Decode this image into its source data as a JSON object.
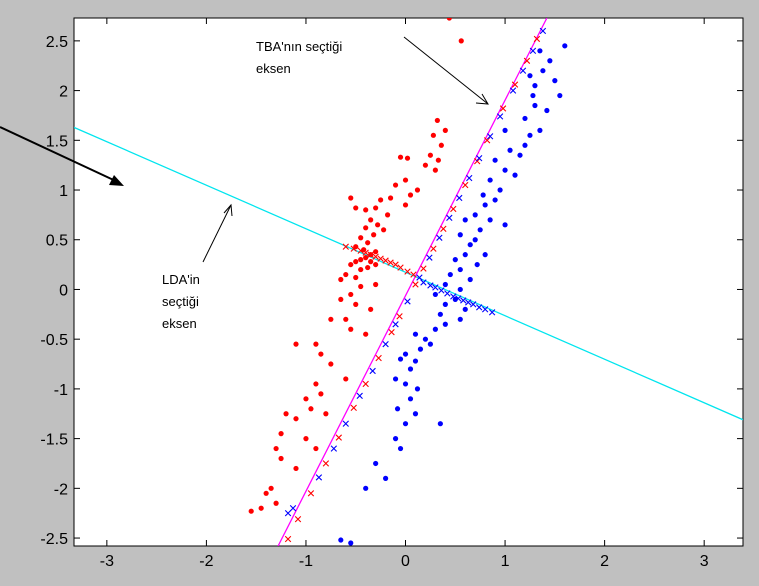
{
  "chart_data": {
    "type": "scatter",
    "xlim": [
      -3.33,
      3.39
    ],
    "ylim": [
      -2.58,
      2.73
    ],
    "xticks": [
      -3,
      -2,
      -1,
      0,
      1,
      2,
      3
    ],
    "yticks": [
      -2.5,
      -2,
      -1.5,
      -1,
      -0.5,
      0,
      0.5,
      1,
      1.5,
      2,
      2.5
    ],
    "xtick_labels": [
      "-3",
      "-2",
      "-1",
      "0",
      "1",
      "2",
      "3"
    ],
    "ytick_labels": [
      "-2.5",
      "-2",
      "-1.5",
      "-1",
      "-0.5",
      "0",
      "0.5",
      "1",
      "1.5",
      "2",
      "2.5"
    ],
    "grid": false,
    "colors": {
      "class1": "#ff0000",
      "class2": "#0000ff",
      "pca_axis": "#ff00ff",
      "lda_axis": "#00e5ee",
      "background": "#ffffff",
      "frame": "#c0c0c0"
    },
    "lines": [
      {
        "id": "pca_axis",
        "x": [
          -1.28,
          1.42
        ],
        "y": [
          -2.58,
          2.73
        ]
      },
      {
        "id": "lda_axis",
        "x": [
          -3.33,
          3.39
        ],
        "y": [
          1.63,
          -1.31
        ]
      }
    ],
    "series": [
      {
        "marker": "dot",
        "color": "#ff0000",
        "points": [
          [
            0.44,
            2.73
          ],
          [
            0.56,
            2.5
          ],
          [
            0.32,
            1.7
          ],
          [
            0.4,
            1.6
          ],
          [
            0.28,
            1.55
          ],
          [
            0.36,
            1.45
          ],
          [
            0.25,
            1.35
          ],
          [
            0.33,
            1.3
          ],
          [
            0.2,
            1.25
          ],
          [
            0.3,
            1.2
          ],
          [
            -0.05,
            1.33
          ],
          [
            0.02,
            1.32
          ],
          [
            0.0,
            1.1
          ],
          [
            -0.1,
            1.05
          ],
          [
            0.12,
            1.0
          ],
          [
            0.05,
            0.95
          ],
          [
            -0.15,
            0.92
          ],
          [
            0.0,
            0.85
          ],
          [
            -0.25,
            0.9
          ],
          [
            -0.3,
            0.82
          ],
          [
            -0.5,
            0.82
          ],
          [
            -0.55,
            0.92
          ],
          [
            -0.4,
            0.8
          ],
          [
            -0.18,
            0.75
          ],
          [
            -0.35,
            0.7
          ],
          [
            -0.28,
            0.65
          ],
          [
            -0.4,
            0.62
          ],
          [
            -0.22,
            0.6
          ],
          [
            -0.32,
            0.55
          ],
          [
            -0.45,
            0.52
          ],
          [
            -0.38,
            0.47
          ],
          [
            -0.5,
            0.43
          ],
          [
            -0.42,
            0.4
          ],
          [
            -0.3,
            0.38
          ],
          [
            -0.35,
            0.35
          ],
          [
            -0.4,
            0.32
          ],
          [
            -0.45,
            0.3
          ],
          [
            -0.5,
            0.28
          ],
          [
            -0.35,
            0.28
          ],
          [
            -0.3,
            0.25
          ],
          [
            -0.38,
            0.22
          ],
          [
            -0.45,
            0.2
          ],
          [
            -0.55,
            0.25
          ],
          [
            -0.6,
            0.15
          ],
          [
            -0.5,
            0.12
          ],
          [
            -0.65,
            0.1
          ],
          [
            -0.3,
            0.05
          ],
          [
            -0.45,
            0.03
          ],
          [
            -0.55,
            -0.05
          ],
          [
            -0.65,
            -0.1
          ],
          [
            -0.5,
            -0.15
          ],
          [
            -0.35,
            -0.2
          ],
          [
            -0.75,
            -0.3
          ],
          [
            -0.6,
            -0.3
          ],
          [
            -0.55,
            -0.4
          ],
          [
            -0.4,
            -0.45
          ],
          [
            -1.1,
            -0.55
          ],
          [
            -0.9,
            -0.55
          ],
          [
            -0.85,
            -0.65
          ],
          [
            -0.75,
            -0.75
          ],
          [
            -0.6,
            -0.9
          ],
          [
            -0.9,
            -0.95
          ],
          [
            -0.85,
            -1.05
          ],
          [
            -1.0,
            -1.1
          ],
          [
            -0.95,
            -1.2
          ],
          [
            -0.8,
            -1.25
          ],
          [
            -1.1,
            -1.3
          ],
          [
            -1.2,
            -1.25
          ],
          [
            -1.25,
            -1.45
          ],
          [
            -1.0,
            -1.5
          ],
          [
            -0.9,
            -1.6
          ],
          [
            -1.3,
            -1.6
          ],
          [
            -1.25,
            -1.7
          ],
          [
            -1.1,
            -1.8
          ],
          [
            -1.35,
            -2.0
          ],
          [
            -1.4,
            -2.05
          ],
          [
            -1.3,
            -2.15
          ],
          [
            -1.45,
            -2.2
          ],
          [
            -1.55,
            -2.23
          ]
        ]
      },
      {
        "marker": "dot",
        "color": "#0000ff",
        "points": [
          [
            1.6,
            2.45
          ],
          [
            1.35,
            2.4
          ],
          [
            1.45,
            2.3
          ],
          [
            1.38,
            2.2
          ],
          [
            1.25,
            2.15
          ],
          [
            1.5,
            2.1
          ],
          [
            1.3,
            2.05
          ],
          [
            1.55,
            1.95
          ],
          [
            1.28,
            1.95
          ],
          [
            1.3,
            1.85
          ],
          [
            1.42,
            1.8
          ],
          [
            1.2,
            1.72
          ],
          [
            1.35,
            1.6
          ],
          [
            1.25,
            1.55
          ],
          [
            1.0,
            1.6
          ],
          [
            1.2,
            1.45
          ],
          [
            1.05,
            1.4
          ],
          [
            1.15,
            1.35
          ],
          [
            0.9,
            1.3
          ],
          [
            1.0,
            1.2
          ],
          [
            1.1,
            1.15
          ],
          [
            0.85,
            1.1
          ],
          [
            0.95,
            1.0
          ],
          [
            0.78,
            0.95
          ],
          [
            0.9,
            0.9
          ],
          [
            0.8,
            0.85
          ],
          [
            0.7,
            0.75
          ],
          [
            0.85,
            0.7
          ],
          [
            1.0,
            0.65
          ],
          [
            0.6,
            0.7
          ],
          [
            0.75,
            0.6
          ],
          [
            0.7,
            0.5
          ],
          [
            0.55,
            0.55
          ],
          [
            0.65,
            0.45
          ],
          [
            0.6,
            0.35
          ],
          [
            0.8,
            0.35
          ],
          [
            0.72,
            0.25
          ],
          [
            0.5,
            0.3
          ],
          [
            0.55,
            0.2
          ],
          [
            0.45,
            0.15
          ],
          [
            0.65,
            0.1
          ],
          [
            0.4,
            0.05
          ],
          [
            0.55,
            0.0
          ],
          [
            0.3,
            -0.05
          ],
          [
            0.5,
            -0.1
          ],
          [
            0.4,
            -0.15
          ],
          [
            0.6,
            -0.2
          ],
          [
            0.35,
            -0.25
          ],
          [
            0.55,
            -0.3
          ],
          [
            0.4,
            -0.35
          ],
          [
            0.3,
            -0.4
          ],
          [
            0.1,
            -0.45
          ],
          [
            0.2,
            -0.5
          ],
          [
            0.25,
            -0.55
          ],
          [
            0.15,
            -0.6
          ],
          [
            0.0,
            -0.65
          ],
          [
            -0.05,
            -0.7
          ],
          [
            0.1,
            -0.72
          ],
          [
            0.05,
            -0.8
          ],
          [
            -0.1,
            -0.9
          ],
          [
            0.0,
            -0.95
          ],
          [
            0.12,
            -1.0
          ],
          [
            0.05,
            -1.1
          ],
          [
            -0.08,
            -1.2
          ],
          [
            0.1,
            -1.25
          ],
          [
            0.0,
            -1.35
          ],
          [
            0.35,
            -1.35
          ],
          [
            -0.1,
            -1.5
          ],
          [
            -0.05,
            -1.6
          ],
          [
            -0.3,
            -1.75
          ],
          [
            -0.2,
            -1.9
          ],
          [
            -0.4,
            -2.0
          ],
          [
            -0.55,
            -2.55
          ],
          [
            -0.65,
            -2.52
          ]
        ]
      },
      {
        "marker": "x",
        "color": "#ff0000",
        "points": [
          [
            -0.6,
            0.43
          ],
          [
            -0.52,
            0.41
          ],
          [
            -0.45,
            0.39
          ],
          [
            -0.4,
            0.37
          ],
          [
            -0.35,
            0.35
          ],
          [
            -0.3,
            0.33
          ],
          [
            -0.25,
            0.31
          ],
          [
            -0.2,
            0.29
          ],
          [
            -0.15,
            0.27
          ],
          [
            -0.1,
            0.25
          ],
          [
            -0.05,
            0.22
          ],
          [
            0.02,
            0.18
          ],
          [
            0.08,
            0.15
          ],
          [
            1.32,
            2.52
          ],
          [
            1.22,
            2.3
          ],
          [
            1.1,
            2.06
          ],
          [
            0.98,
            1.82
          ],
          [
            0.82,
            1.5
          ],
          [
            0.72,
            1.29
          ],
          [
            0.6,
            1.05
          ],
          [
            0.48,
            0.81
          ],
          [
            0.38,
            0.61
          ],
          [
            0.28,
            0.41
          ],
          [
            0.18,
            0.21
          ],
          [
            0.1,
            0.05
          ],
          [
            -0.06,
            -0.27
          ],
          [
            -0.14,
            -0.43
          ],
          [
            -0.27,
            -0.69
          ],
          [
            -0.4,
            -0.95
          ],
          [
            -0.52,
            -1.19
          ],
          [
            -0.67,
            -1.49
          ],
          [
            -0.8,
            -1.75
          ],
          [
            -0.95,
            -2.05
          ],
          [
            -1.08,
            -2.31
          ],
          [
            -1.18,
            -2.51
          ]
        ]
      },
      {
        "marker": "x",
        "color": "#0000ff",
        "points": [
          [
            0.18,
            0.07
          ],
          [
            0.25,
            0.04
          ],
          [
            0.3,
            0.02
          ],
          [
            0.36,
            -0.01
          ],
          [
            0.42,
            -0.04
          ],
          [
            0.48,
            -0.07
          ],
          [
            0.53,
            -0.09
          ],
          [
            0.58,
            -0.11
          ],
          [
            0.63,
            -0.13
          ],
          [
            0.68,
            -0.15
          ],
          [
            0.74,
            -0.18
          ],
          [
            0.8,
            -0.2
          ],
          [
            0.87,
            -0.23
          ],
          [
            1.38,
            2.6
          ],
          [
            1.28,
            2.4
          ],
          [
            1.18,
            2.2
          ],
          [
            1.08,
            2.0
          ],
          [
            0.95,
            1.74
          ],
          [
            0.85,
            1.54
          ],
          [
            0.74,
            1.32
          ],
          [
            0.64,
            1.12
          ],
          [
            0.54,
            0.92
          ],
          [
            0.44,
            0.72
          ],
          [
            0.34,
            0.52
          ],
          [
            0.24,
            0.32
          ],
          [
            0.14,
            0.12
          ],
          [
            0.02,
            -0.12
          ],
          [
            -0.1,
            -0.35
          ],
          [
            -0.2,
            -0.55
          ],
          [
            -0.33,
            -0.82
          ],
          [
            -0.46,
            -1.07
          ],
          [
            -0.6,
            -1.35
          ],
          [
            -0.72,
            -1.6
          ],
          [
            -0.87,
            -1.89
          ],
          [
            -1.13,
            -2.2
          ],
          [
            -1.18,
            -2.25
          ]
        ]
      }
    ],
    "annotations": [
      {
        "lines": [
          "TBA'nın seçtiği",
          "eksen"
        ]
      },
      {
        "lines": [
          "LDA'in",
          "seçtiği",
          "eksen"
        ]
      }
    ]
  }
}
